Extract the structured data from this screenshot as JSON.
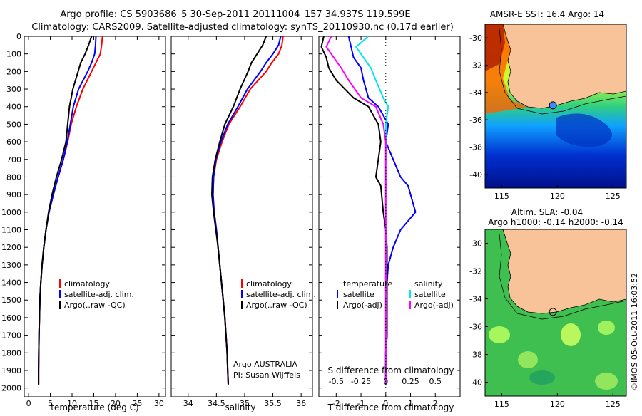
{
  "header": {
    "line1": "Argo profile: CS 5903686_5 30-Sep-2011 20111004_157 34.937S 119.599E",
    "line2": "Climatology: CARS2009. Satellite-adjusted climatology: synTS_20110930.nc (0.17d earlier)"
  },
  "colors": {
    "climatology": "#ff0000",
    "satellite": "#0000ff",
    "argo": "#000000",
    "argo_salinity": "#ff00ff",
    "satellite_salinity": "#00e5ee",
    "land": "#f9c39a"
  },
  "chart_data": [
    {
      "id": "temperature",
      "type": "line",
      "xlabel": "temperature (deg C)",
      "ylabel": "",
      "xlim": [
        -1,
        31.5
      ],
      "ylim": [
        0,
        2050
      ],
      "xticks": [
        "0",
        "5",
        "10",
        "15",
        "20",
        "25",
        "30"
      ],
      "xtick_values": [
        0,
        5,
        10,
        15,
        20,
        25,
        30
      ],
      "yticks": [
        "0",
        "100",
        "200",
        "300",
        "400",
        "500",
        "600",
        "700",
        "800",
        "900",
        "1000",
        "1100",
        "1200",
        "1300",
        "1400",
        "1500",
        "1600",
        "1700",
        "1800",
        "1900",
        "2000"
      ],
      "ytick_values": [
        0,
        100,
        200,
        300,
        400,
        500,
        600,
        700,
        800,
        900,
        1000,
        1100,
        1200,
        1300,
        1400,
        1500,
        1600,
        1700,
        1800,
        1900,
        2000
      ],
      "legend": [
        "climatology",
        "satellite-adj. clim.",
        "Argo(..raw -QC)"
      ],
      "series": [
        {
          "name": "climatology",
          "x": [
            17.0,
            16.8,
            16.5,
            15.5,
            14.5,
            12.5,
            11.0,
            9.8,
            9.0,
            8.0,
            6.8,
            5.7,
            4.7,
            4.0,
            3.5,
            3.1,
            2.8,
            2.6,
            2.5,
            2.4,
            2.35,
            2.3,
            2.3
          ],
          "y": [
            0,
            50,
            100,
            150,
            200,
            300,
            400,
            500,
            600,
            700,
            800,
            900,
            1000,
            1100,
            1200,
            1300,
            1400,
            1500,
            1600,
            1700,
            1800,
            1900,
            1980
          ]
        },
        {
          "name": "satellite",
          "x": [
            15.5,
            15.4,
            15.2,
            14.5,
            13.6,
            11.5,
            10.3,
            9.6,
            8.9,
            8.0,
            6.8,
            5.7,
            4.7,
            4.0,
            3.5,
            3.1,
            2.8,
            2.6,
            2.5,
            2.4,
            2.35,
            2.3,
            2.3
          ],
          "y": [
            0,
            50,
            100,
            150,
            200,
            300,
            400,
            500,
            600,
            700,
            800,
            900,
            1000,
            1100,
            1200,
            1300,
            1400,
            1500,
            1600,
            1700,
            1800,
            1900,
            1980
          ]
        },
        {
          "name": "argo",
          "x": [
            14.5,
            13.8,
            13.0,
            12.0,
            11.4,
            10.2,
            9.4,
            9.0,
            8.6,
            7.6,
            6.4,
            5.4,
            4.6,
            4.0,
            3.5,
            3.1,
            2.8,
            2.6,
            2.5,
            2.4,
            2.35,
            2.3,
            2.3
          ],
          "y": [
            0,
            50,
            100,
            150,
            200,
            300,
            400,
            500,
            600,
            700,
            800,
            900,
            1000,
            1100,
            1200,
            1300,
            1400,
            1500,
            1600,
            1700,
            1800,
            1900,
            1980
          ]
        }
      ]
    },
    {
      "id": "salinity",
      "type": "line",
      "xlabel": "salinity",
      "xlim": [
        33.7,
        36.2
      ],
      "ylim": [
        0,
        2050
      ],
      "xticks": [
        "34",
        "34.5",
        "35",
        "35.5",
        "36"
      ],
      "xtick_values": [
        34,
        34.5,
        35,
        35.5,
        36
      ],
      "legend": [
        "climatology",
        "satellite-adj. clim.",
        "Argo(..raw -QC)"
      ],
      "annotation": [
        "Argo AUSTRALIA",
        "PI: Susan Wijffels"
      ],
      "series": [
        {
          "name": "climatology",
          "x": [
            35.68,
            35.66,
            35.6,
            35.48,
            35.38,
            35.1,
            34.92,
            34.72,
            34.6,
            34.5,
            34.45,
            34.44,
            34.46,
            34.5,
            34.53,
            34.56,
            34.59,
            34.62,
            34.65,
            34.67,
            34.69,
            34.7,
            34.71
          ],
          "y": [
            0,
            50,
            100,
            150,
            200,
            300,
            400,
            500,
            600,
            700,
            800,
            900,
            1000,
            1100,
            1200,
            1300,
            1400,
            1500,
            1600,
            1700,
            1800,
            1900,
            1980
          ]
        },
        {
          "name": "satellite",
          "x": [
            35.64,
            35.6,
            35.5,
            35.38,
            35.28,
            35.05,
            34.88,
            34.7,
            34.58,
            34.49,
            34.45,
            34.44,
            34.46,
            34.5,
            34.53,
            34.56,
            34.59,
            34.62,
            34.65,
            34.67,
            34.69,
            34.7,
            34.71
          ],
          "y": [
            0,
            50,
            100,
            150,
            200,
            300,
            400,
            500,
            600,
            700,
            800,
            900,
            1000,
            1100,
            1200,
            1300,
            1400,
            1500,
            1600,
            1700,
            1800,
            1900,
            1980
          ]
        },
        {
          "name": "argo",
          "x": [
            35.38,
            35.32,
            35.22,
            35.12,
            35.06,
            34.92,
            34.8,
            34.65,
            34.56,
            34.48,
            34.43,
            34.42,
            34.45,
            34.49,
            34.53,
            34.56,
            34.59,
            34.62,
            34.65,
            34.67,
            34.69,
            34.7,
            34.71
          ],
          "y": [
            0,
            50,
            100,
            150,
            200,
            300,
            400,
            500,
            600,
            700,
            800,
            900,
            1000,
            1100,
            1200,
            1300,
            1400,
            1500,
            1600,
            1700,
            1800,
            1900,
            1980
          ]
        }
      ]
    },
    {
      "id": "difference",
      "type": "line",
      "xlabel": "T difference from climatology",
      "top_label": "S difference from climatology",
      "xlim": [
        -2.7,
        3.0
      ],
      "ylim": [
        0,
        2050
      ],
      "xticks": [
        "-2",
        "-1",
        "0",
        "1",
        "2"
      ],
      "xtick_values": [
        -2,
        -1,
        0,
        1,
        2
      ],
      "sticks": [
        "-0.5",
        "-0.25",
        "0",
        "0.25",
        "0.5"
      ],
      "stick_values": [
        -2,
        -1,
        0,
        1,
        2
      ],
      "legend_left": [
        "temperature",
        "satellite",
        "Argo(-adj)"
      ],
      "legend_right": [
        "salinity",
        "satellite",
        "Argo(-adj)"
      ],
      "series": [
        {
          "name": "temperature satellite",
          "x": [
            -1.5,
            -1.4,
            -1.3,
            -1.0,
            -0.9,
            -0.7,
            -0.3,
            0.1,
            0.0,
            0.3,
            0.6,
            0.9,
            1.2,
            0.6,
            0.3,
            0.1,
            0.05,
            0.05,
            0.05,
            0.05,
            0.0,
            0.0,
            0.0
          ],
          "y": [
            0,
            60,
            120,
            180,
            250,
            350,
            400,
            500,
            600,
            700,
            800,
            850,
            1000,
            1100,
            1200,
            1300,
            1400,
            1500,
            1600,
            1700,
            1800,
            1900,
            1980
          ]
        },
        {
          "name": "temperature argo",
          "x": [
            -2.5,
            -2.6,
            -2.4,
            -2.3,
            -2.0,
            -1.3,
            -0.7,
            -0.3,
            -0.2,
            -0.3,
            -0.4,
            -0.2,
            -0.1,
            0.0,
            0.05,
            0.05,
            0.05,
            0.05,
            0.05,
            0.05,
            0.0,
            0.0,
            0.0
          ],
          "y": [
            0,
            60,
            120,
            180,
            250,
            350,
            400,
            500,
            600,
            700,
            800,
            850,
            1000,
            1100,
            1200,
            1300,
            1400,
            1500,
            1600,
            1700,
            1800,
            1900,
            1980
          ]
        },
        {
          "name": "salinity satellite",
          "x": [
            -0.7,
            -1.2,
            -0.9,
            -0.6,
            -0.4,
            -0.1,
            0.1,
            0.0,
            0.0,
            0.0,
            0.0,
            0.0,
            0.0,
            0.0,
            0.0,
            0.0,
            0.0,
            0.0,
            0.0,
            0.0,
            0.0,
            0.0,
            0.0
          ],
          "y": [
            0,
            60,
            120,
            180,
            250,
            350,
            400,
            500,
            600,
            700,
            800,
            850,
            1000,
            1100,
            1200,
            1300,
            1400,
            1500,
            1600,
            1700,
            1800,
            1900,
            1980
          ]
        },
        {
          "name": "salinity argo",
          "x": [
            -2.2,
            -2.4,
            -2.1,
            -1.8,
            -1.5,
            -1.0,
            -0.4,
            -0.1,
            0.0,
            0.0,
            0.0,
            0.0,
            0.0,
            0.0,
            0.0,
            0.0,
            0.0,
            0.0,
            0.0,
            0.0,
            0.0,
            0.0,
            0.0
          ],
          "y": [
            0,
            60,
            120,
            180,
            250,
            350,
            400,
            500,
            600,
            700,
            800,
            850,
            1000,
            1100,
            1200,
            1300,
            1400,
            1500,
            1600,
            1700,
            1800,
            1900,
            1980
          ]
        }
      ]
    }
  ],
  "maps": [
    {
      "id": "sst-map",
      "title": "AMSR-E SST: 16.4 Argo: 14",
      "lat_ticks": [
        "-30",
        "-32",
        "-34",
        "-36",
        "-38",
        "-40"
      ],
      "lat_values": [
        -30,
        -32,
        -34,
        -36,
        -38,
        -40
      ],
      "lon_ticks": [
        "115",
        "120",
        "125"
      ],
      "lon_values": [
        115,
        120,
        125
      ],
      "lon_range": [
        113.5,
        126.2
      ],
      "lat_range": [
        -29.0,
        -41.0
      ],
      "float_lon": 119.6,
      "float_lat": -34.94
    },
    {
      "id": "sla-map",
      "title_line1": "Altim. SLA: -0.04",
      "title_line2": "Argo h1000: -0.14 h2000: -0.14",
      "lat_ticks": [
        "-30",
        "-32",
        "-34",
        "-36",
        "-38",
        "-40"
      ],
      "lat_values": [
        -30,
        -32,
        -34,
        -36,
        -38,
        -40
      ],
      "lon_ticks": [
        "115",
        "120",
        "125"
      ],
      "lon_values": [
        115,
        120,
        125
      ],
      "lon_range": [
        113.5,
        126.2
      ],
      "lat_range": [
        -29.0,
        -41.0
      ],
      "float_lon": 119.6,
      "float_lat": -34.94
    }
  ],
  "footer": {
    "credit": "©IMOS 05-Oct-2011 16:03:52"
  }
}
